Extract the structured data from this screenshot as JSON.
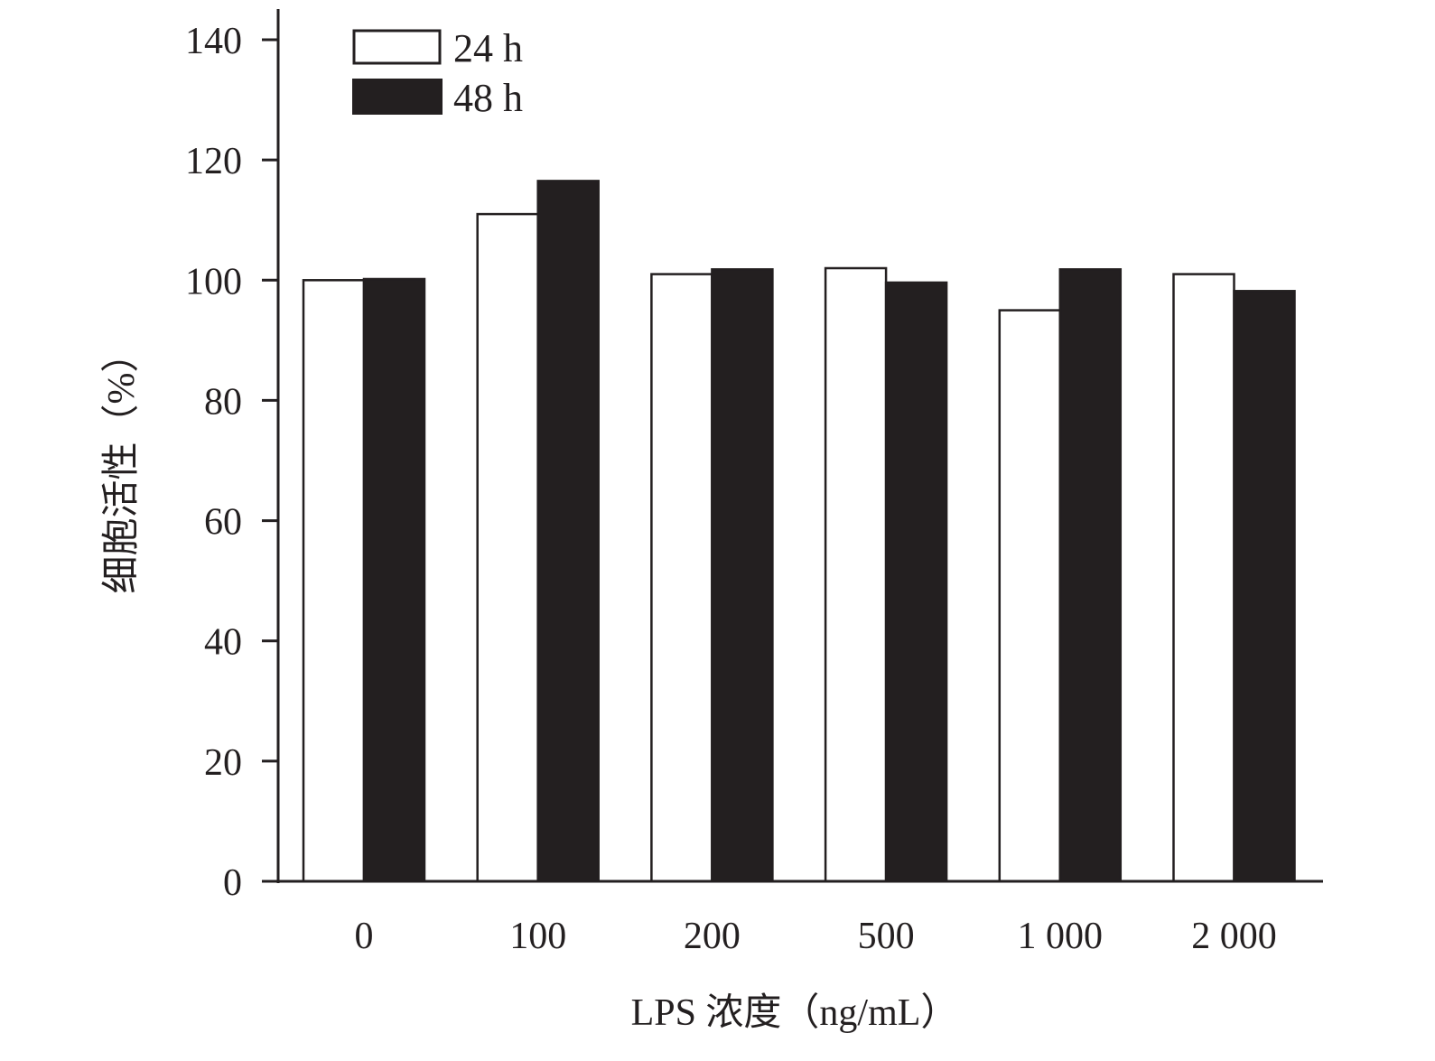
{
  "chart_data": {
    "type": "bar",
    "categories": [
      "0",
      "100",
      "200",
      "500",
      "1 000",
      "2 000"
    ],
    "series": [
      {
        "name": "24 h",
        "values": [
          100,
          111,
          101,
          102,
          95,
          101
        ]
      },
      {
        "name": "48 h",
        "values": [
          100.2,
          116.5,
          101.8,
          99.6,
          101.8,
          98.2
        ]
      }
    ],
    "xlabel": "LPS 浓度（ng/mL）",
    "ylabel": "细胞活性（%）",
    "ylim": [
      0,
      140
    ],
    "yticks": [
      "0",
      "20",
      "40",
      "60",
      "80",
      "100",
      "120",
      "140"
    ],
    "legend_position": "top-left",
    "grid": false,
    "colors": {
      "series_24h_fill": "#ffffff",
      "series_48h_fill": "#231f20",
      "stroke": "#231f20"
    }
  }
}
